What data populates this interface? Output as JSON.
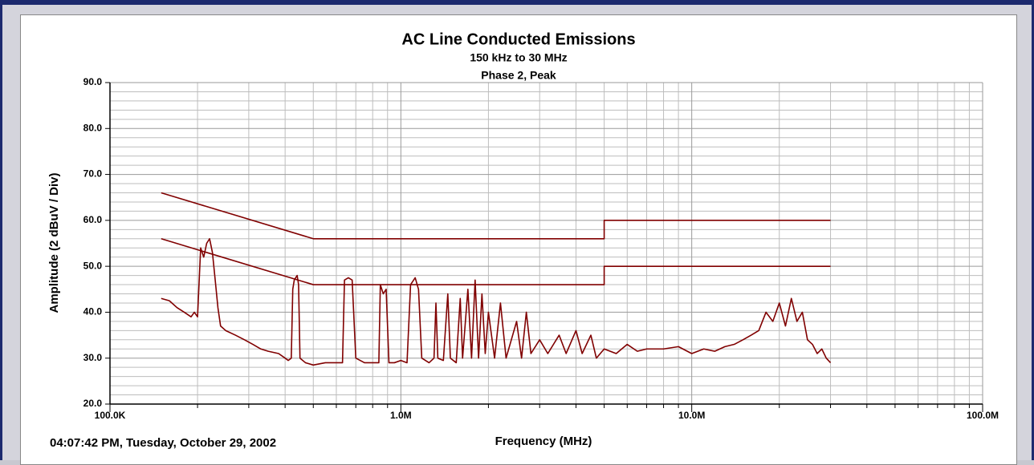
{
  "chart_data": {
    "type": "line",
    "title": "AC Line Conducted Emissions",
    "subtitle": [
      "150 kHz to 30 MHz",
      "Phase 2, Peak"
    ],
    "y_label": "Amplitude (2 dBuV / Div)",
    "x_label": "Frequency (MHz)",
    "footer": "04:07:42 PM, Tuesday, October 29, 2002",
    "xscale": "log",
    "xlim": [
      100000,
      100000000
    ],
    "xticks": [
      {
        "value": 100000,
        "label": "100.0K"
      },
      {
        "value": 1000000,
        "label": "1.0M"
      },
      {
        "value": 10000000,
        "label": "10.0M"
      },
      {
        "value": 100000000,
        "label": "100.0M"
      }
    ],
    "xminorticks": [
      200000,
      300000,
      400000,
      500000,
      600000,
      700000,
      800000,
      900000,
      2000000,
      3000000,
      4000000,
      5000000,
      6000000,
      7000000,
      8000000,
      9000000,
      20000000,
      30000000,
      40000000,
      50000000,
      60000000,
      70000000,
      80000000,
      90000000
    ],
    "ylim": [
      20,
      90
    ],
    "yticks": [
      {
        "value": 20,
        "label": "20.0"
      },
      {
        "value": 30,
        "label": "30.0"
      },
      {
        "value": 40,
        "label": "40.0"
      },
      {
        "value": 50,
        "label": "50.0"
      },
      {
        "value": 60,
        "label": "60.0"
      },
      {
        "value": 70,
        "label": "70.0"
      },
      {
        "value": 80,
        "label": "80.0"
      },
      {
        "value": 90,
        "label": "90.0"
      }
    ],
    "yminorticks": [
      22,
      24,
      26,
      28,
      32,
      34,
      36,
      38,
      42,
      44,
      46,
      48,
      52,
      54,
      56,
      58,
      62,
      64,
      66,
      68,
      72,
      74,
      76,
      78,
      82,
      84,
      86,
      88
    ],
    "grid": true,
    "series": [
      {
        "color": "#800000",
        "x": [
          150000,
          500000,
          5000000,
          5000000,
          30000000
        ],
        "values": [
          66,
          56,
          56,
          60,
          60
        ]
      },
      {
        "color": "#800000",
        "x": [
          150000,
          500000,
          5000000,
          5000000,
          30000000
        ],
        "values": [
          56,
          46,
          46,
          50,
          50
        ]
      },
      {
        "color": "#800000",
        "x": [
          150000,
          160000,
          170000,
          180000,
          190000,
          195000,
          200000,
          205000,
          210000,
          215000,
          220000,
          225000,
          230000,
          235000,
          240000,
          250000,
          270000,
          290000,
          310000,
          330000,
          350000,
          380000,
          400000,
          410000,
          420000,
          425000,
          430000,
          440000,
          445000,
          450000,
          470000,
          500000,
          550000,
          600000,
          630000,
          640000,
          660000,
          680000,
          700000,
          750000,
          800000,
          840000,
          850000,
          870000,
          890000,
          910000,
          950000,
          1000000,
          1050000,
          1080000,
          1120000,
          1150000,
          1180000,
          1250000,
          1300000,
          1320000,
          1340000,
          1400000,
          1450000,
          1480000,
          1550000,
          1600000,
          1630000,
          1700000,
          1750000,
          1800000,
          1850000,
          1900000,
          1950000,
          2000000,
          2100000,
          2200000,
          2300000,
          2500000,
          2600000,
          2700000,
          2800000,
          3000000,
          3200000,
          3500000,
          3700000,
          4000000,
          4200000,
          4500000,
          4700000,
          5000000,
          5500000,
          6000000,
          6500000,
          7000000,
          8000000,
          9000000,
          10000000,
          11000000,
          12000000,
          13000000,
          14000000,
          15000000,
          16000000,
          17000000,
          18000000,
          19000000,
          20000000,
          21000000,
          22000000,
          23000000,
          24000000,
          25000000,
          26000000,
          27000000,
          28000000,
          29000000,
          30000000
        ],
        "values": [
          43,
          42.5,
          41,
          40,
          39,
          40,
          39,
          54,
          52,
          55,
          56,
          53,
          47,
          41,
          37,
          36,
          35,
          34,
          33,
          32,
          31.5,
          31,
          30,
          29.5,
          30,
          45,
          47,
          48,
          46,
          30,
          29,
          28.5,
          29,
          29,
          29,
          47,
          47.5,
          47,
          30,
          29,
          29,
          29,
          46,
          44,
          45,
          29,
          29,
          29.5,
          29,
          46,
          47.5,
          45,
          30,
          29,
          30,
          42,
          30,
          29.5,
          44,
          30,
          29,
          43,
          30,
          45,
          30,
          47,
          30,
          44,
          31,
          40,
          30,
          42,
          30,
          38,
          30,
          40,
          31,
          34,
          31,
          35,
          31,
          36,
          31,
          35,
          30,
          32,
          31,
          33,
          31.5,
          32,
          32,
          32.5,
          31,
          32,
          31.5,
          32.5,
          33,
          34,
          35,
          36,
          40,
          38,
          42,
          37,
          43,
          38,
          40,
          34,
          33,
          31,
          32,
          30,
          29
        ]
      }
    ]
  }
}
